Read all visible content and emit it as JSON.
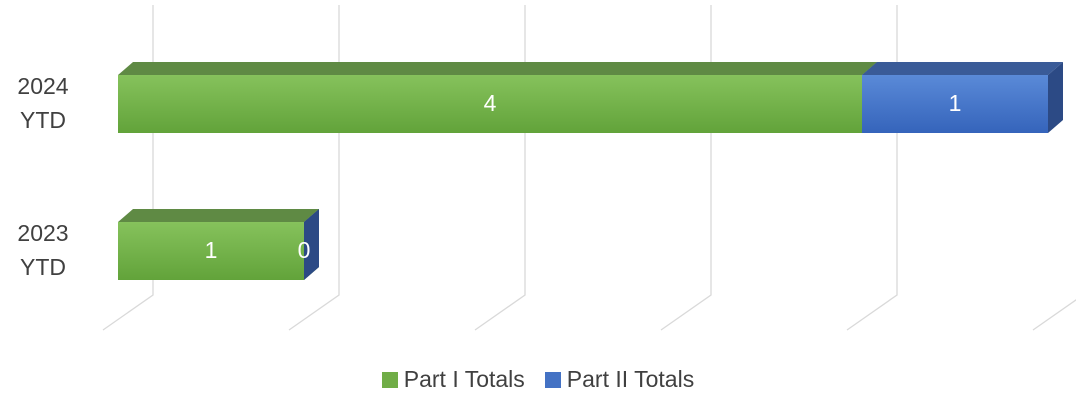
{
  "chart_data": {
    "type": "bar",
    "orientation": "horizontal",
    "stacked": true,
    "categories": [
      "2024 YTD",
      "2023 YTD"
    ],
    "series": [
      {
        "name": "Part I Totals",
        "color": "#70ad47",
        "values": [
          4,
          1
        ]
      },
      {
        "name": "Part II Totals",
        "color": "#4472c4",
        "values": [
          1,
          0
        ]
      }
    ],
    "xlim": [
      0,
      5
    ],
    "xticks": [
      0,
      1,
      2,
      3,
      4,
      5
    ],
    "grid": true,
    "legend": "bottom"
  }
}
